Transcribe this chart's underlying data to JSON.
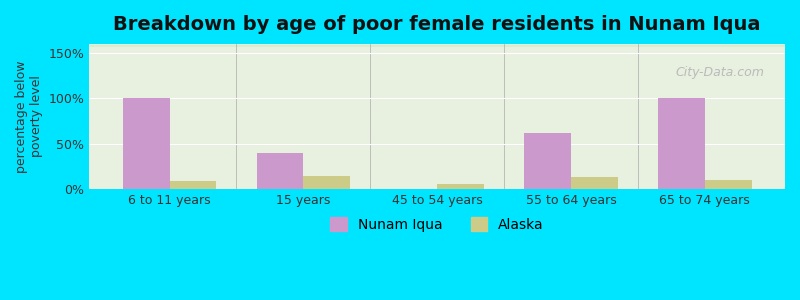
{
  "title": "Breakdown by age of poor female residents in Nunam Iqua",
  "ylabel": "percentage below\npoverty level",
  "categories": [
    "6 to 11 years",
    "15 years",
    "45 to 54 years",
    "55 to 64 years",
    "65 to 74 years"
  ],
  "nunam_iqua_values": [
    100,
    40,
    0,
    62,
    100
  ],
  "alaska_values": [
    9,
    15,
    6,
    13,
    10
  ],
  "nunam_color": "#cc99cc",
  "alaska_color": "#cccc88",
  "background_outer": "#00e5ff",
  "background_inner_top": "#e8f0e0",
  "background_inner_bottom": "#d8ecd0",
  "yticks": [
    0,
    50,
    100,
    150
  ],
  "ytick_labels": [
    "0%",
    "50%",
    "100%",
    "150%"
  ],
  "ylim": [
    0,
    160
  ],
  "bar_width": 0.35,
  "title_fontsize": 14,
  "axis_label_fontsize": 9,
  "tick_fontsize": 9,
  "legend_fontsize": 10,
  "watermark_text": "City-Data.com"
}
